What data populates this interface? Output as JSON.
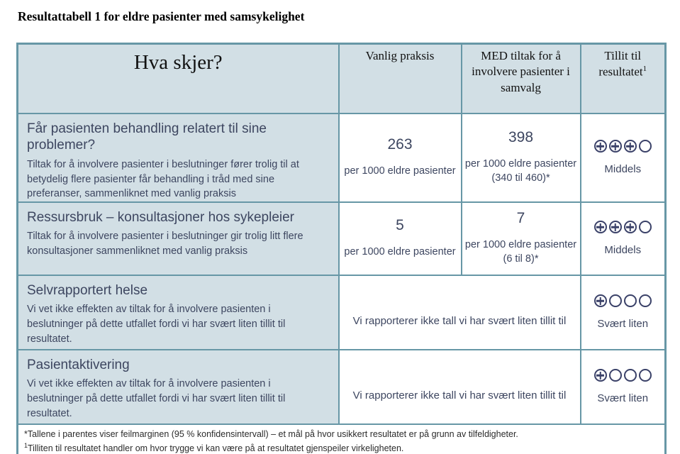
{
  "page": {
    "title": "Resultattabell 1 for eldre pasienter med samsykelighet"
  },
  "table": {
    "header": {
      "what_happens": "Hva skjer?",
      "usual_practice": "Vanlig praksis",
      "intervention": "MED tiltak for å involvere pasienter i samvalg",
      "confidence": "Tillit til resultatet",
      "confidence_footnote_marker": "1"
    },
    "rows": [
      {
        "question": "Får pasienten behandling relatert til sine problemer?",
        "description": "Tiltak for å involvere pasienter i beslutninger fører trolig til at betydelig flere pasienter får behandling i tråd med sine preferanser, sammenliknet med vanlig praksis",
        "merged": false,
        "usual_value": "263",
        "usual_unit": "per 1000 eldre pasienter",
        "intervention_value": "398",
        "intervention_unit": "per 1000 eldre pasienter",
        "intervention_ci": "(340 til 460)*",
        "confidence": {
          "filled": 3,
          "total": 4,
          "label": "Middels"
        }
      },
      {
        "question": "Ressursbruk – konsultasjoner hos sykepleier",
        "description": "Tiltak for å involvere pasienter i beslutninger gir trolig litt flere konsultasjoner sammenliknet med vanlig praksis",
        "merged": false,
        "usual_value": "5",
        "usual_unit": "per 1000 eldre pasienter",
        "intervention_value": "7",
        "intervention_unit": "per 1000 eldre pasienter",
        "intervention_ci": "(6 til 8)*",
        "confidence": {
          "filled": 3,
          "total": 4,
          "label": "Middels"
        }
      },
      {
        "question": "Selvrapportert helse",
        "description": "Vi vet ikke effekten av tiltak for å involvere pasienten i beslutninger på dette utfallet fordi vi har svært liten tillit til resultatet.",
        "merged": true,
        "merged_text": "Vi rapporterer ikke tall vi har svært liten tillit til",
        "confidence": {
          "filled": 1,
          "total": 4,
          "label": "Svært liten"
        }
      },
      {
        "question": "Pasientaktivering",
        "description": "Vi vet ikke effekten av tiltak for å involvere pasienten i beslutninger på dette utfallet fordi vi har svært liten tillit til resultatet.",
        "merged": true,
        "merged_text": "Vi rapporterer ikke tall vi har svært liten tillit til",
        "confidence": {
          "filled": 1,
          "total": 4,
          "label": "Svært liten"
        }
      }
    ],
    "footnotes": [
      {
        "marker": "*",
        "sup": false,
        "text": "Tallene i parentes viser feilmarginen (95 % konfidensintervall) – et mål på hvor usikkert resultatet er på grunn av tilfeldigheter."
      },
      {
        "marker": "1",
        "sup": true,
        "text": "Tilliten til resultatet handler om hvor trygge vi kan være på at resultatet gjenspeiler virkeligheten."
      }
    ]
  },
  "colors": {
    "border": "#6797a6",
    "label_cell_bg": "#d2dfe5",
    "body_text": "#3d4660",
    "grade_symbol": "#3a4168",
    "title_text": "#000000",
    "footnote_text": "#2b2b2b"
  }
}
